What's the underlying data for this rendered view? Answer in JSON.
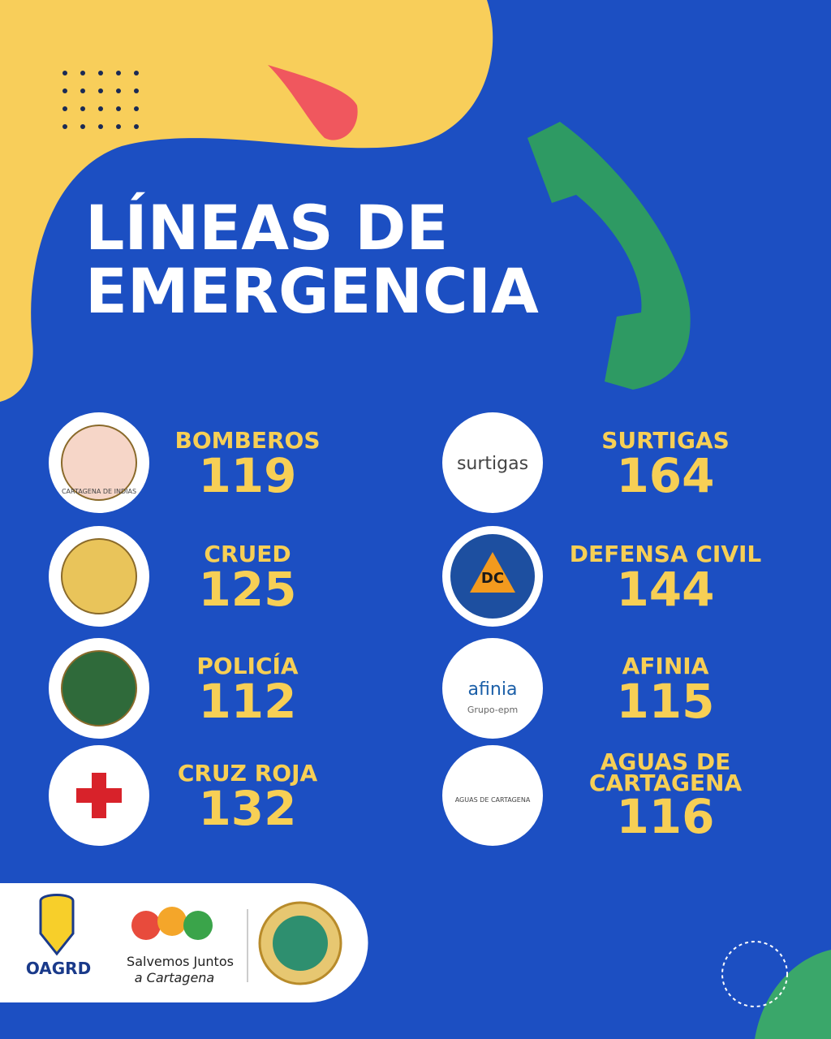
{
  "header": {
    "title_line1": "LÍNEAS DE",
    "title_line2": "EMERGENCIA"
  },
  "left": [
    {
      "name": "BOMBEROS",
      "number": "119",
      "logo": "CARTAGENA DE INDIAS"
    },
    {
      "name": "CRUED",
      "number": "125"
    },
    {
      "name": "POLICÍA",
      "number": "112"
    },
    {
      "name": "CRUZ ROJA",
      "number": "132"
    }
  ],
  "right": [
    {
      "name": "SURTIGAS",
      "number": "164",
      "logo": "surtigas"
    },
    {
      "name": "DEFENSA CIVIL",
      "number": "144",
      "logo": "DC"
    },
    {
      "name": "AFINIA",
      "number": "115",
      "logo": "afinia",
      "logo_sub": "Grupo-epm"
    },
    {
      "name_line1": "AGUAS DE",
      "name_line2": "CARTAGENA",
      "number": "116",
      "logo": "AGUAS DE CARTAGENA"
    }
  ],
  "footer": {
    "oagrd": "OAGRD",
    "salvemos_line1": "Salvemos Juntos",
    "salvemos_line2": "a Cartagena"
  }
}
